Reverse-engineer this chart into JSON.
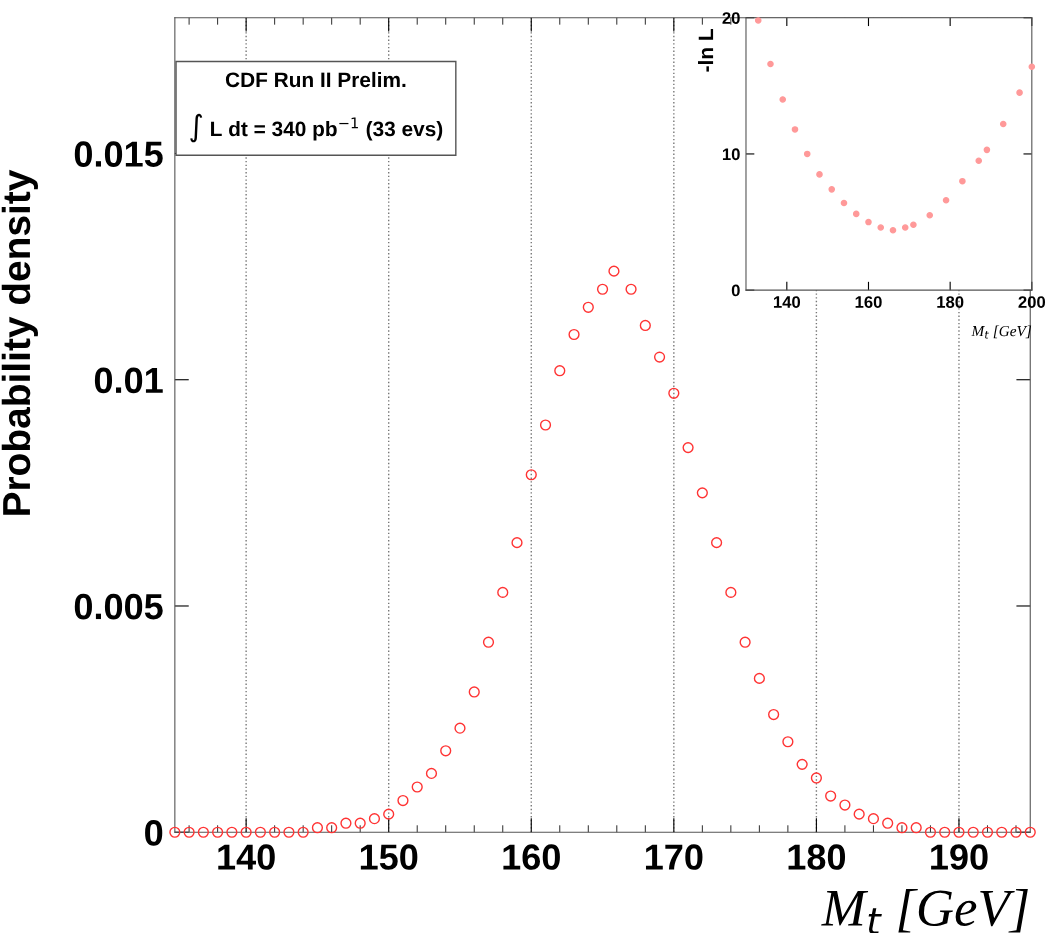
{
  "chart_data": [
    {
      "type": "scatter",
      "xlabel": "M$_{t}$ [GeV]",
      "ylabel": "Probability density",
      "xlim": [
        135,
        195
      ],
      "ylim": [
        0,
        0.018
      ],
      "xticks": [
        140,
        150,
        160,
        170,
        180,
        190
      ],
      "yticks": [
        0,
        {
          "value": 0.005,
          "label": "0.005"
        },
        {
          "value": 0.01,
          "label": "0.01"
        },
        {
          "value": 0.015,
          "label": "0.015"
        }
      ],
      "grid": "x",
      "marker": "circle",
      "annotations": [
        "CDF Run II Prelim.",
        "∫ L dt = 340 pb$^{−1}$ (33 evs)"
      ],
      "series": [
        {
          "color": "#ff3333",
          "x": [
            135,
            136,
            137,
            138,
            139,
            140,
            141,
            142,
            143,
            144,
            145,
            146,
            147,
            148,
            149,
            150,
            151,
            152,
            153,
            154,
            155,
            156,
            157,
            158,
            159,
            160,
            161,
            162,
            163,
            164,
            165,
            165.8,
            167,
            168,
            169,
            170,
            171,
            172,
            173,
            174,
            175,
            176,
            177,
            178,
            179,
            180,
            181,
            182,
            183,
            184,
            185,
            186,
            187,
            188,
            189,
            190,
            191,
            192,
            193,
            194,
            195
          ],
          "values": [
            0,
            0,
            0,
            0,
            0,
            0,
            0,
            0,
            0,
            0,
            0.0001,
            0.0001,
            0.0002,
            0.0002,
            0.0003,
            0.0004,
            0.0007,
            0.001,
            0.0013,
            0.0018,
            0.0023,
            0.0031,
            0.0042,
            0.0053,
            0.0064,
            0.0079,
            0.009,
            0.0102,
            0.011,
            0.0116,
            0.012,
            0.0124,
            0.012,
            0.0112,
            0.0105,
            0.0097,
            0.0085,
            0.0075,
            0.0064,
            0.0053,
            0.0042,
            0.0034,
            0.0026,
            0.002,
            0.0015,
            0.0012,
            0.0008,
            0.0006,
            0.0004,
            0.0003,
            0.0002,
            0.0001,
            0.0001,
            0,
            0,
            0,
            0,
            0,
            0,
            0,
            0
          ]
        }
      ]
    },
    {
      "type": "scatter",
      "xlabel": "M$_{t}$ [GeV]",
      "ylabel": "-ln L",
      "xlim": [
        130,
        200
      ],
      "ylim": [
        0,
        20
      ],
      "xticks": [
        140,
        160,
        180,
        200
      ],
      "yticks": [
        0,
        10,
        20
      ],
      "marker": "circle",
      "series": [
        {
          "color": "#ff9999",
          "x": [
            133,
            136,
            139,
            142,
            145,
            148,
            151,
            154,
            157,
            160,
            163,
            166,
            169,
            171,
            175,
            179,
            183,
            187,
            189,
            193,
            197,
            200
          ],
          "values": [
            19.8,
            16.6,
            14.0,
            11.8,
            10.0,
            8.5,
            7.4,
            6.4,
            5.6,
            5.0,
            4.6,
            4.4,
            4.6,
            4.8,
            5.5,
            6.6,
            8.0,
            9.5,
            10.3,
            12.2,
            14.5,
            16.4
          ]
        }
      ]
    }
  ]
}
